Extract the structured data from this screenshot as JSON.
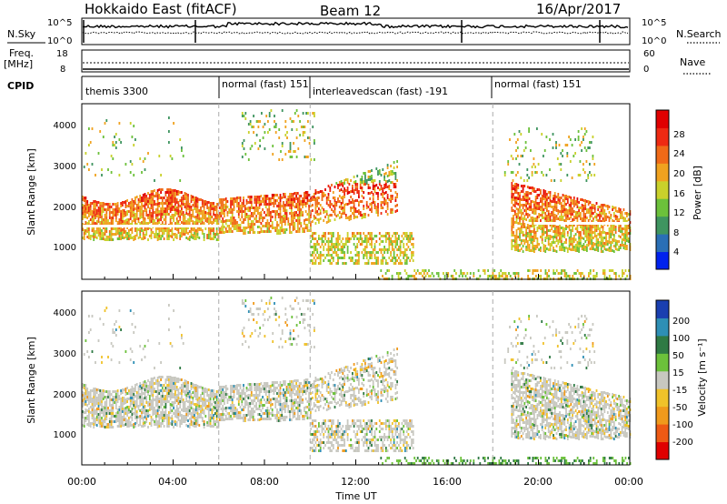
{
  "header": {
    "title": "Hokkaido East (fitACF)",
    "beam": "Beam 12",
    "date": "16/Apr/2017"
  },
  "top_strip": {
    "nsky_label": "N.Sky",
    "nsearch_label": "N.Search",
    "noise_ticks": [
      "10^5",
      "10^0"
    ],
    "freq_label": "Freq.",
    "freq_unit": "[MHz]",
    "freq_ticks": [
      "18",
      "8"
    ],
    "nave_label": "Nave",
    "nave_ticks": [
      "60",
      "0"
    ],
    "cpid_label": "CPID",
    "cpid_segments": [
      {
        "label": "themis 3300",
        "start_hour": 0
      },
      {
        "label": "normal (fast) 151",
        "start_hour": 6
      },
      {
        "label": "interleavedscan (fast) -191",
        "start_hour": 10
      },
      {
        "label": "normal (fast) 151",
        "start_hour": 18
      }
    ]
  },
  "chart_data": [
    {
      "type": "heatmap",
      "name": "power",
      "ylabel": "Slant Range [km]",
      "yticks": [
        "1000",
        "2000",
        "3000",
        "4000"
      ],
      "colorbar_label": "Power [dB]",
      "colorbar_ticks": [
        "4",
        "8",
        "12",
        "16",
        "20",
        "24",
        "28"
      ],
      "colorbar_colors": [
        "#0022ee",
        "#2a6fb6",
        "#3f9560",
        "#6cc13b",
        "#c9d12b",
        "#f0a21f",
        "#f06a18",
        "#ee2a12",
        "#e00000"
      ]
    },
    {
      "type": "heatmap",
      "name": "velocity",
      "ylabel": "Slant Range [km]",
      "yticks": [
        "1000",
        "2000",
        "3000",
        "4000"
      ],
      "colorbar_label": "Velocity [m s⁻¹]",
      "colorbar_ticks": [
        "200",
        "100",
        "50",
        "15",
        "-15",
        "-50",
        "-100",
        "-200"
      ],
      "colorbar_colors": [
        "#1a3fb0",
        "#2e8fb5",
        "#2f7a44",
        "#6cc13b",
        "#c8c8c0",
        "#f0c22a",
        "#f09a1c",
        "#ee5a14",
        "#e00000"
      ]
    }
  ],
  "xaxis": {
    "label": "Time UT",
    "ticks": [
      "00:00",
      "04:00",
      "08:00",
      "12:00",
      "16:00",
      "20:00",
      "00:00"
    ]
  }
}
